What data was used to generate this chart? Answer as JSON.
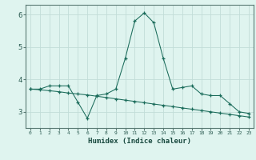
{
  "xlabel": "Humidex (Indice chaleur)",
  "x": [
    0,
    1,
    2,
    3,
    4,
    5,
    6,
    7,
    8,
    9,
    10,
    11,
    12,
    13,
    14,
    15,
    16,
    17,
    18,
    19,
    20,
    21,
    22,
    23
  ],
  "line1": [
    3.7,
    3.7,
    3.8,
    3.8,
    3.8,
    3.3,
    2.8,
    3.5,
    3.55,
    3.7,
    4.65,
    5.8,
    6.05,
    5.75,
    4.65,
    3.7,
    3.75,
    3.8,
    3.55,
    3.5,
    3.5,
    3.25,
    3.0,
    2.95
  ],
  "line2": [
    3.7,
    3.68,
    3.65,
    3.62,
    3.58,
    3.55,
    3.52,
    3.48,
    3.44,
    3.4,
    3.36,
    3.32,
    3.28,
    3.24,
    3.2,
    3.16,
    3.12,
    3.08,
    3.04,
    3.0,
    2.96,
    2.92,
    2.88,
    2.84
  ],
  "line_color": "#1a6b5a",
  "bg_color": "#dff4ef",
  "grid_color": "#c2ddd8",
  "ylim": [
    2.5,
    6.3
  ],
  "yticks": [
    3,
    4,
    5,
    6
  ],
  "xticks": [
    0,
    1,
    2,
    3,
    4,
    5,
    6,
    7,
    8,
    9,
    10,
    11,
    12,
    13,
    14,
    15,
    16,
    17,
    18,
    19,
    20,
    21,
    22,
    23
  ]
}
